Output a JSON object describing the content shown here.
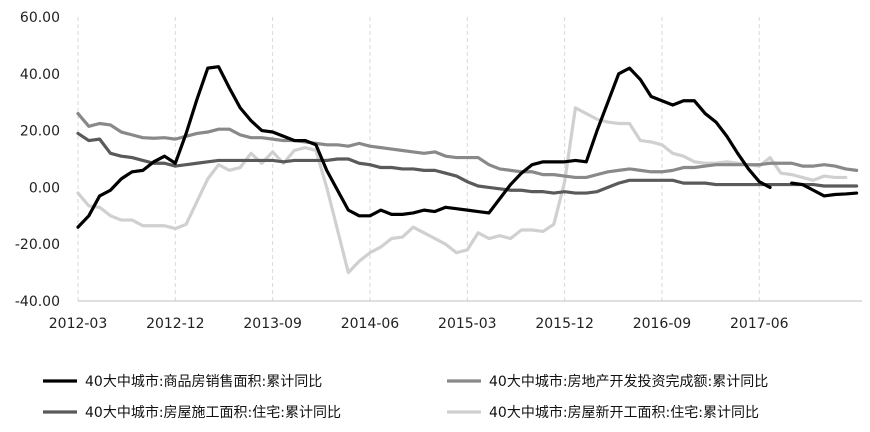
{
  "chart_data": {
    "type": "line",
    "title": "",
    "xlabel": "",
    "ylabel": "",
    "ylim": [
      -40,
      60
    ],
    "yticks": [
      "60.00",
      "40.00",
      "20.00",
      "0.00",
      "-20.00",
      "-40.00"
    ],
    "ytick_values": [
      60,
      40,
      20,
      0,
      -20,
      -40
    ],
    "x_tick_labels": [
      "2012-03",
      "2012-12",
      "2013-09",
      "2014-06",
      "2015-03",
      "2015-12",
      "2016-09",
      "2017-06"
    ],
    "x_tick_index": [
      0,
      9,
      18,
      27,
      36,
      45,
      54,
      63
    ],
    "x_start": "2012-03",
    "grid": "vertical-dashed",
    "legend_position": "bottom",
    "series": [
      {
        "name": "40大中城市:商品房销售面积:累计同比",
        "color": "#000000",
        "values": [
          -14,
          -10,
          -3,
          -1,
          3,
          5.5,
          6,
          9,
          11,
          8.5,
          19,
          31,
          42,
          42.5,
          35,
          28,
          23.5,
          20,
          19.5,
          18,
          16.5,
          16.5,
          15,
          6,
          -1,
          -8,
          -10,
          -10,
          -8,
          -9.5,
          -9.5,
          -9,
          -8,
          -8.5,
          -7,
          -7.5,
          -8,
          -8.5,
          -9,
          -4,
          1,
          5,
          8,
          9,
          9,
          9,
          9.5,
          9,
          20,
          30,
          40,
          42,
          38,
          32,
          30.5,
          29,
          30.5,
          30.5,
          26,
          23,
          18,
          12,
          6.5,
          2,
          0,
          null,
          1.5,
          1,
          -1,
          -3,
          -2.5,
          -2.3,
          -2
        ]
      },
      {
        "name": "40大中城市:房地产开发投资完成额:累计同比",
        "color": "#898989",
        "values": [
          26,
          21.5,
          22.5,
          22,
          19.5,
          18.5,
          17.5,
          17.3,
          17.5,
          17,
          18,
          19,
          19.5,
          20.5,
          20.5,
          18.5,
          17.5,
          17.5,
          17,
          16.5,
          16.5,
          16,
          15.5,
          15,
          15,
          14.5,
          15.5,
          14.5,
          14,
          13.5,
          13,
          12.5,
          12,
          12.5,
          11,
          10.5,
          10.5,
          10.5,
          8,
          6.5,
          6,
          5.5,
          5.5,
          4.5,
          4.5,
          4,
          3.5,
          3.5,
          4.5,
          5.5,
          6,
          6.5,
          6,
          5.5,
          5.5,
          6,
          7,
          7,
          7.5,
          8,
          8,
          8,
          8,
          8,
          8.5,
          8.5,
          8.5,
          7.5,
          7.5,
          8,
          7.5,
          6.5,
          6
        ]
      },
      {
        "name": "40大中城市:房屋施工面积:住宅:累计同比",
        "color": "#5a5a5a",
        "values": [
          19,
          16.5,
          17,
          12,
          11,
          10.5,
          9.5,
          8.5,
          8.5,
          7.5,
          8,
          8.5,
          9,
          9.5,
          9.5,
          9.5,
          9.5,
          9.5,
          9.5,
          9,
          9.5,
          9.5,
          9.5,
          9.5,
          10,
          10,
          8.5,
          8,
          7,
          7,
          6.5,
          6.5,
          6,
          6,
          5,
          4,
          2,
          0.5,
          0,
          -0.5,
          -1,
          -1,
          -1.5,
          -1.5,
          -2,
          -1.5,
          -2,
          -2,
          -1.5,
          0,
          1.5,
          2.5,
          2.5,
          2.5,
          2.5,
          2.5,
          1.5,
          1.5,
          1.5,
          1,
          1,
          1,
          1,
          1,
          1,
          1,
          1,
          1,
          1,
          0.5,
          0.5,
          0.5,
          0.5
        ]
      },
      {
        "name": "40大中城市:房屋新开工面积:住宅:累计同比",
        "color": "#d0d0d0",
        "values": [
          -2,
          -6.5,
          -7,
          -10,
          -11.5,
          -11.5,
          -13.5,
          -13.5,
          -13.5,
          -14.5,
          -13,
          -5,
          3,
          8,
          6,
          7,
          12,
          8.5,
          12.5,
          8.5,
          13,
          14,
          13,
          0,
          -15,
          -30,
          -26,
          -23,
          -21,
          -18,
          -17.5,
          -14,
          -16,
          -18,
          -20,
          -23,
          -22,
          -16,
          -18,
          -17,
          -18,
          -15,
          -15,
          -15.5,
          -13,
          2,
          28,
          26,
          24,
          23,
          22.5,
          22.5,
          16.5,
          16,
          15,
          12,
          11,
          9,
          8.5,
          8.5,
          9,
          8.5,
          8,
          7.5,
          10.5,
          5,
          4.5,
          3.5,
          2.5,
          4,
          3.5,
          3.5,
          null
        ]
      }
    ]
  }
}
